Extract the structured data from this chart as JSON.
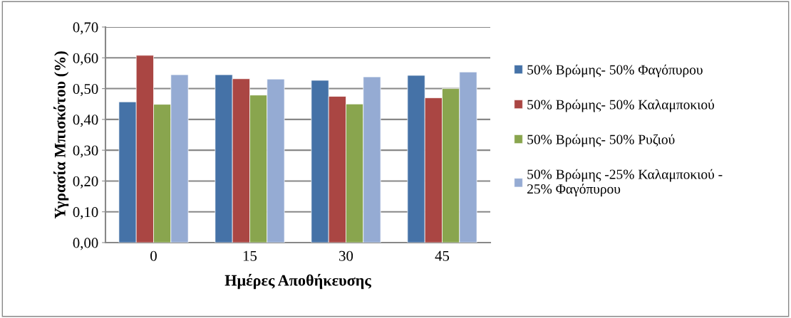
{
  "chart_data": {
    "type": "bar",
    "xlabel": "Ημέρες Αποθήκευσης",
    "ylabel": "Υγρασία Μπισκότου (%)",
    "categories": [
      "0",
      "15",
      "30",
      "45"
    ],
    "series": [
      {
        "name": "50% Βρώμης- 50% Φαγόπυρου",
        "color": "#4572a7",
        "values": [
          0.457,
          0.545,
          0.527,
          0.543
        ]
      },
      {
        "name": "50% Βρώμης- 50% Καλαμποκιού",
        "color": "#aa4643",
        "values": [
          0.608,
          0.532,
          0.475,
          0.47
        ]
      },
      {
        "name": "50% Βρώμης- 50% Ρυζιού",
        "color": "#89a54e",
        "values": [
          0.449,
          0.479,
          0.45,
          0.5
        ]
      },
      {
        "name": "50% Βρώμης -25% Καλαμποκιού -\n25% Φαγόπυρου",
        "color": "#95abd3",
        "values": [
          0.545,
          0.531,
          0.538,
          0.554
        ]
      }
    ],
    "ylim": [
      0,
      0.7
    ],
    "yticks": [
      {
        "value": 0,
        "label": "0,00"
      },
      {
        "value": 0.1,
        "label": "0,10"
      },
      {
        "value": 0.2,
        "label": "0,20"
      },
      {
        "value": 0.3,
        "label": "0,30"
      },
      {
        "value": 0.4,
        "label": "0,40"
      },
      {
        "value": 0.5,
        "label": "0,50"
      },
      {
        "value": 0.6,
        "label": "0,60"
      },
      {
        "value": 0.7,
        "label": "0,70"
      }
    ],
    "grid": "y",
    "legend": "right"
  }
}
